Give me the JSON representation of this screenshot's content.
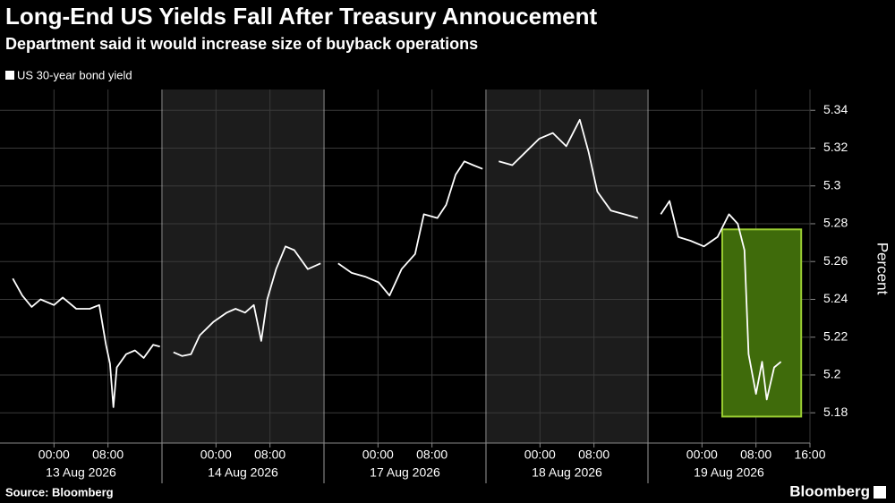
{
  "chart_data": {
    "type": "line",
    "title": "Long-End US Yields Fall After Treasury Annoucement",
    "subtitle": "Department said it would increase size of buyback operations",
    "series_name": "US 30-year bond yield",
    "color": "#ffffff",
    "y_label": "Percent",
    "source": "Source: Bloomberg",
    "brand": "Bloomberg",
    "ylim": [
      5.164,
      5.351
    ],
    "yticks": [
      5.18,
      5.2,
      5.22,
      5.24,
      5.26,
      5.28,
      5.3,
      5.32,
      5.34
    ],
    "grid": true,
    "xlim": [
      -8,
      16
    ],
    "panels": [
      {
        "date": "13 Aug 2026",
        "xticks": [
          {
            "value": 0,
            "label": "00:00"
          },
          {
            "value": 8,
            "label": "08:00"
          }
        ],
        "x": [
          -6.1,
          -4.7,
          -3.3,
          -2,
          0,
          1.3,
          3.3,
          5.3,
          6.7,
          7.7,
          8.3,
          8.8,
          9.3,
          10.7,
          12,
          13.3,
          14.7,
          15.7
        ],
        "values": [
          5.251,
          5.242,
          5.236,
          5.24,
          5.237,
          5.241,
          5.235,
          5.235,
          5.237,
          5.216,
          5.206,
          5.183,
          5.204,
          5.211,
          5.213,
          5.209,
          5.216,
          5.215
        ]
      },
      {
        "date": "14 Aug 2026",
        "xticks": [
          {
            "value": 0,
            "label": "00:00"
          },
          {
            "value": 8,
            "label": "08:00"
          }
        ],
        "x": [
          -6.3,
          -5,
          -3.7,
          -2.4,
          -0.4,
          1.6,
          2.9,
          4.3,
          5.6,
          6.7,
          7.6,
          8.9,
          10.3,
          11.6,
          13.6,
          15.5
        ],
        "values": [
          5.212,
          5.21,
          5.211,
          5.221,
          5.228,
          5.233,
          5.235,
          5.233,
          5.237,
          5.218,
          5.24,
          5.256,
          5.268,
          5.266,
          5.256,
          5.259
        ]
      },
      {
        "date": "17 Aug 2026",
        "xticks": [
          {
            "value": 0,
            "label": "00:00"
          },
          {
            "value": 8,
            "label": "08:00"
          }
        ],
        "x": [
          -5.9,
          -3.9,
          -1.9,
          0.1,
          1.7,
          3.5,
          5.5,
          6.8,
          8.8,
          10.1,
          11.5,
          12.8,
          14.1,
          15.5
        ],
        "values": [
          5.259,
          5.254,
          5.252,
          5.249,
          5.242,
          5.256,
          5.264,
          5.285,
          5.283,
          5.29,
          5.306,
          5.313,
          5.311,
          5.309
        ]
      },
      {
        "date": "18 Aug 2026",
        "xticks": [
          {
            "value": 0,
            "label": "00:00"
          },
          {
            "value": 8,
            "label": "08:00"
          }
        ],
        "x": [
          -6.1,
          -4.1,
          -2.1,
          -0.1,
          1.9,
          3.9,
          5.9,
          7.2,
          8.5,
          10.5,
          12.5,
          14.5
        ],
        "values": [
          5.313,
          5.311,
          5.318,
          5.325,
          5.328,
          5.321,
          5.335,
          5.318,
          5.297,
          5.287,
          5.285,
          5.283
        ]
      },
      {
        "date": "19 Aug 2026",
        "xticks": [
          {
            "value": 0,
            "label": "00:00"
          },
          {
            "value": 8,
            "label": "08:00"
          },
          {
            "value": 16,
            "label": "16:00"
          }
        ],
        "x": [
          -6.1,
          -4.8,
          -3.5,
          -1.7,
          0.3,
          2.3,
          4,
          5.3,
          6.3,
          6.9,
          8,
          8.9,
          9.6,
          10.7,
          11.7
        ],
        "values": [
          5.285,
          5.292,
          5.273,
          5.271,
          5.268,
          5.273,
          5.285,
          5.28,
          5.266,
          5.211,
          5.19,
          5.207,
          5.187,
          5.204,
          5.207
        ],
        "highlight": {
          "x": [
            3,
            14.7
          ],
          "y": [
            5.178,
            5.277
          ],
          "fill": "#3f6b0b",
          "stroke": "#9acd32"
        }
      }
    ]
  }
}
